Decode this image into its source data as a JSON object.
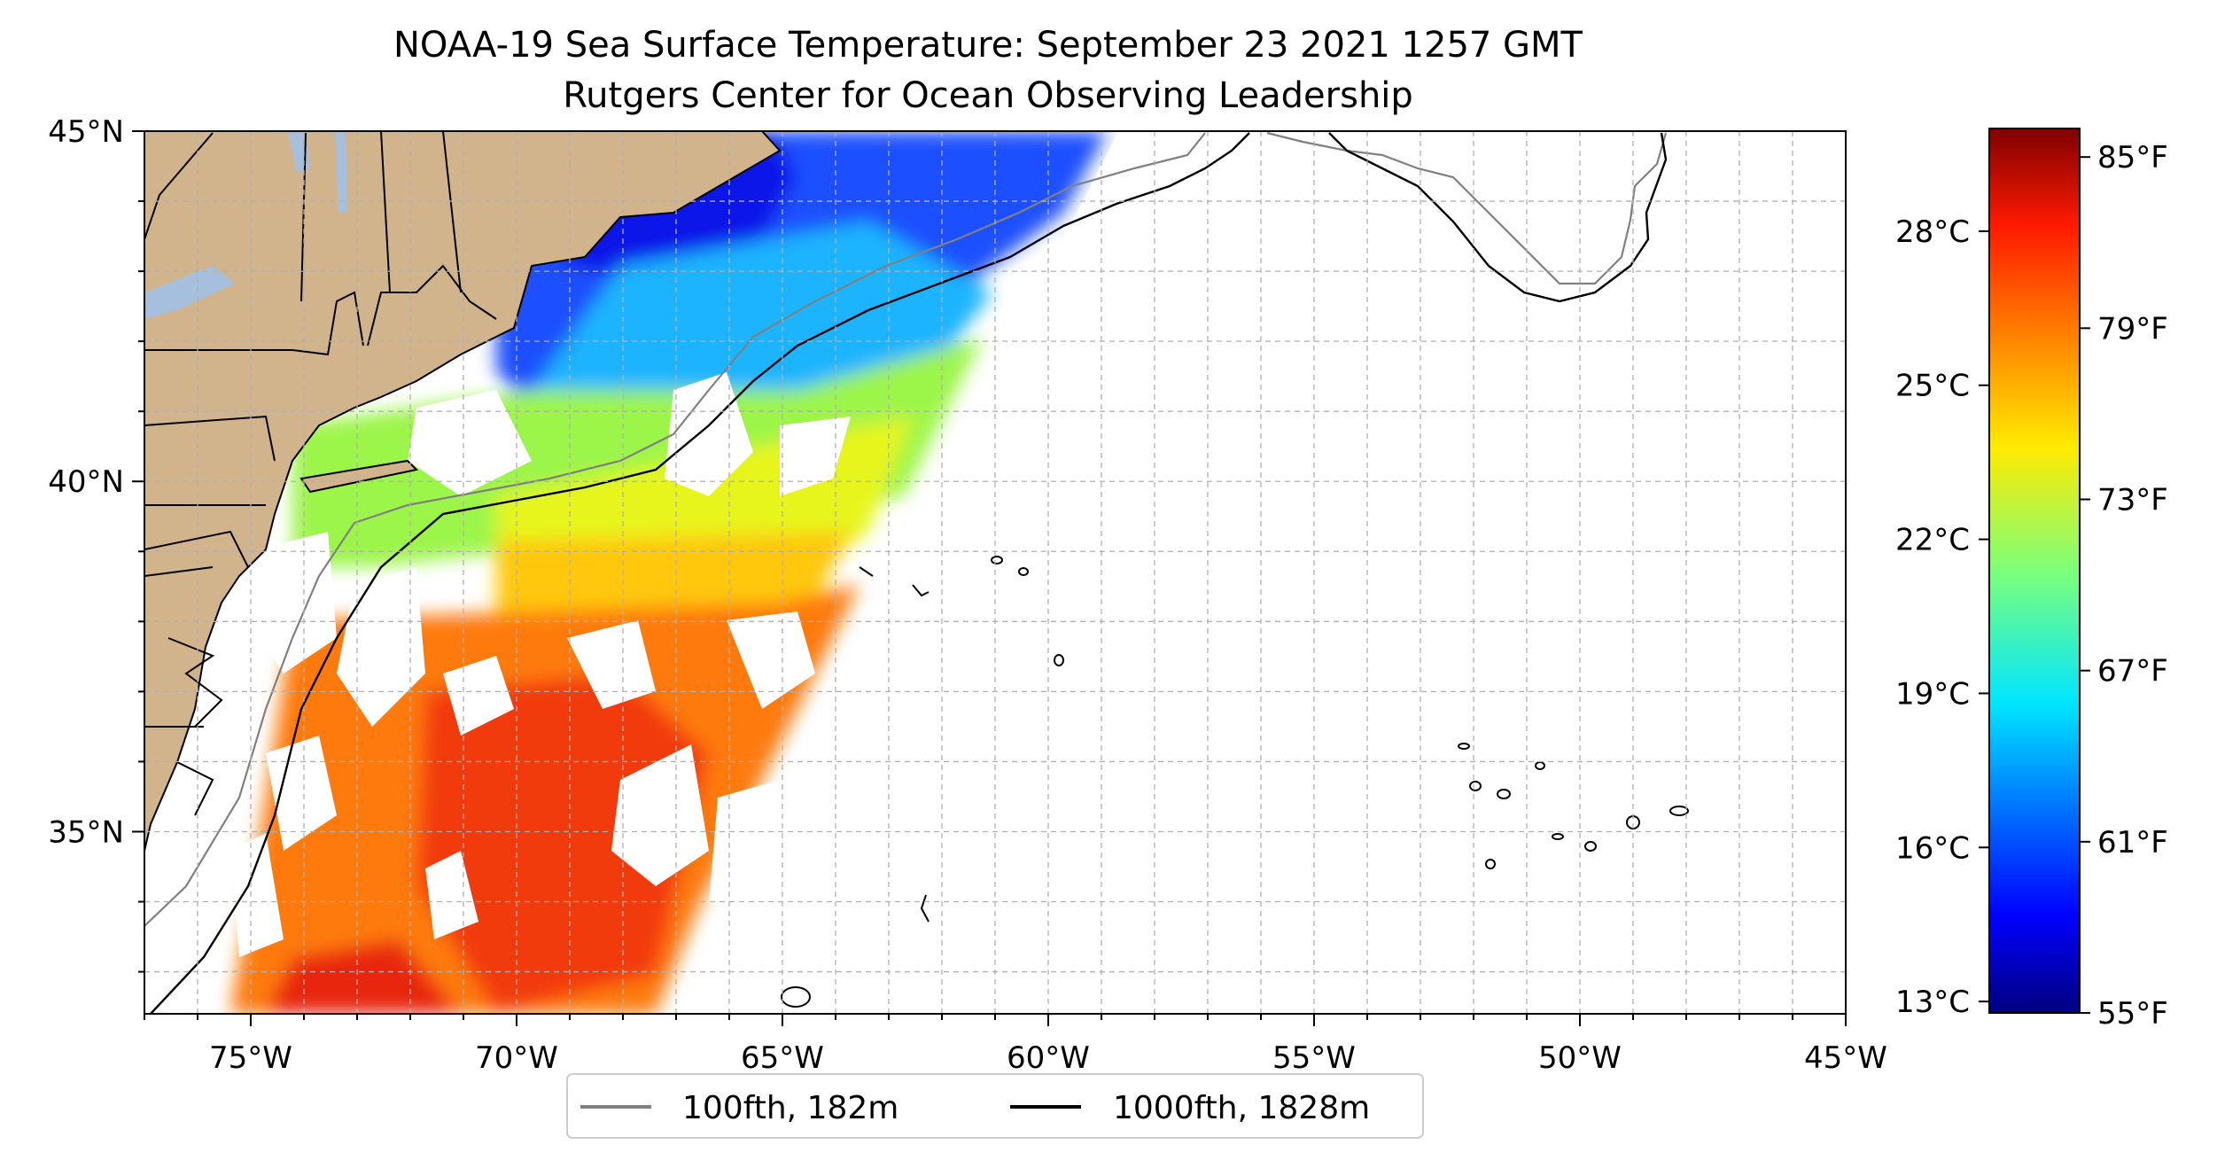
{
  "title": {
    "line1": "NOAA-19 Sea Surface Temperature: September 23 2021 1257 GMT",
    "line2": "Rutgers Center for Ocean Observing Leadership"
  },
  "map": {
    "lon_range": [
      -77,
      -45
    ],
    "lat_range": [
      32.4,
      45
    ],
    "lon_ticks": [
      {
        "value": -75,
        "label": "75°W"
      },
      {
        "value": -70,
        "label": "70°W"
      },
      {
        "value": -65,
        "label": "65°W"
      },
      {
        "value": -60,
        "label": "60°W"
      },
      {
        "value": -55,
        "label": "55°W"
      },
      {
        "value": -50,
        "label": "50°W"
      },
      {
        "value": -45,
        "label": "45°W"
      }
    ],
    "lat_ticks": [
      {
        "value": 45,
        "label": "45°N"
      },
      {
        "value": 40,
        "label": "40°N"
      },
      {
        "value": 35,
        "label": "35°N"
      }
    ],
    "grid": true,
    "land_color": "#d2b48c",
    "lake_color": "#a5bfdd"
  },
  "legend": {
    "placement": "bottom-center",
    "items": [
      {
        "label": "100fth, 182m",
        "color": "#808080"
      },
      {
        "label": "1000fth, 1828m",
        "color": "#000000"
      }
    ]
  },
  "colorbar": {
    "colormap": "jet",
    "range_f": [
      55,
      86
    ],
    "celsius_ticks": [
      {
        "value": 28,
        "label": "28°C"
      },
      {
        "value": 25,
        "label": "25°C"
      },
      {
        "value": 22,
        "label": "22°C"
      },
      {
        "value": 19,
        "label": "19°C"
      },
      {
        "value": 16,
        "label": "16°C"
      },
      {
        "value": 13,
        "label": "13°C"
      }
    ],
    "fahrenheit_ticks": [
      {
        "value": 85,
        "label": "85°F"
      },
      {
        "value": 79,
        "label": "79°F"
      },
      {
        "value": 73,
        "label": "73°F"
      },
      {
        "value": 67,
        "label": "67°F"
      },
      {
        "value": 61,
        "label": "61°F"
      },
      {
        "value": 55,
        "label": "55°F"
      }
    ]
  }
}
